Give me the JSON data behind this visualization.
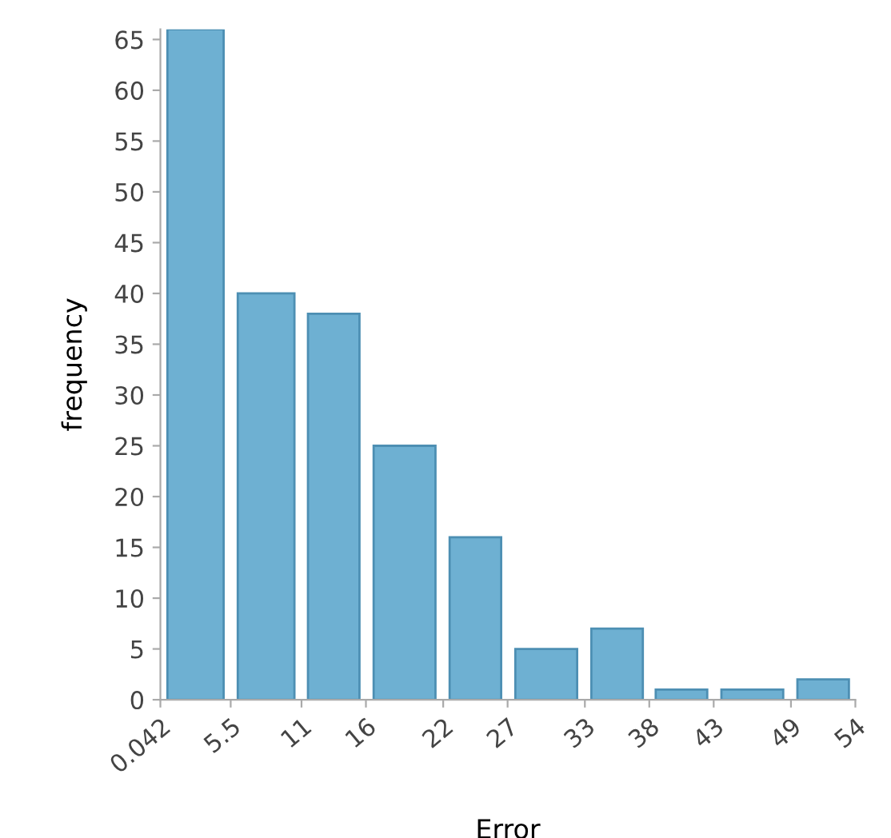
{
  "chart_data": {
    "type": "histogram",
    "xlabel": "Error",
    "ylabel": "frequency",
    "bins": [
      0.042,
      5.5,
      11,
      16,
      22,
      27,
      33,
      38,
      43,
      49,
      54
    ],
    "values": [
      66,
      40,
      38,
      25,
      16,
      5,
      7,
      1,
      1,
      2
    ],
    "color": "#6eb0d2",
    "xlim": [
      0.042,
      54
    ],
    "xticks": [
      0.042,
      5.5,
      11,
      16,
      22,
      27,
      33,
      38,
      43,
      49,
      54
    ],
    "ylim": [
      0,
      66
    ],
    "yticks": [
      0,
      5,
      10,
      15,
      20,
      25,
      30,
      35,
      40,
      45,
      50,
      55,
      60,
      65
    ],
    "grid": false
  }
}
